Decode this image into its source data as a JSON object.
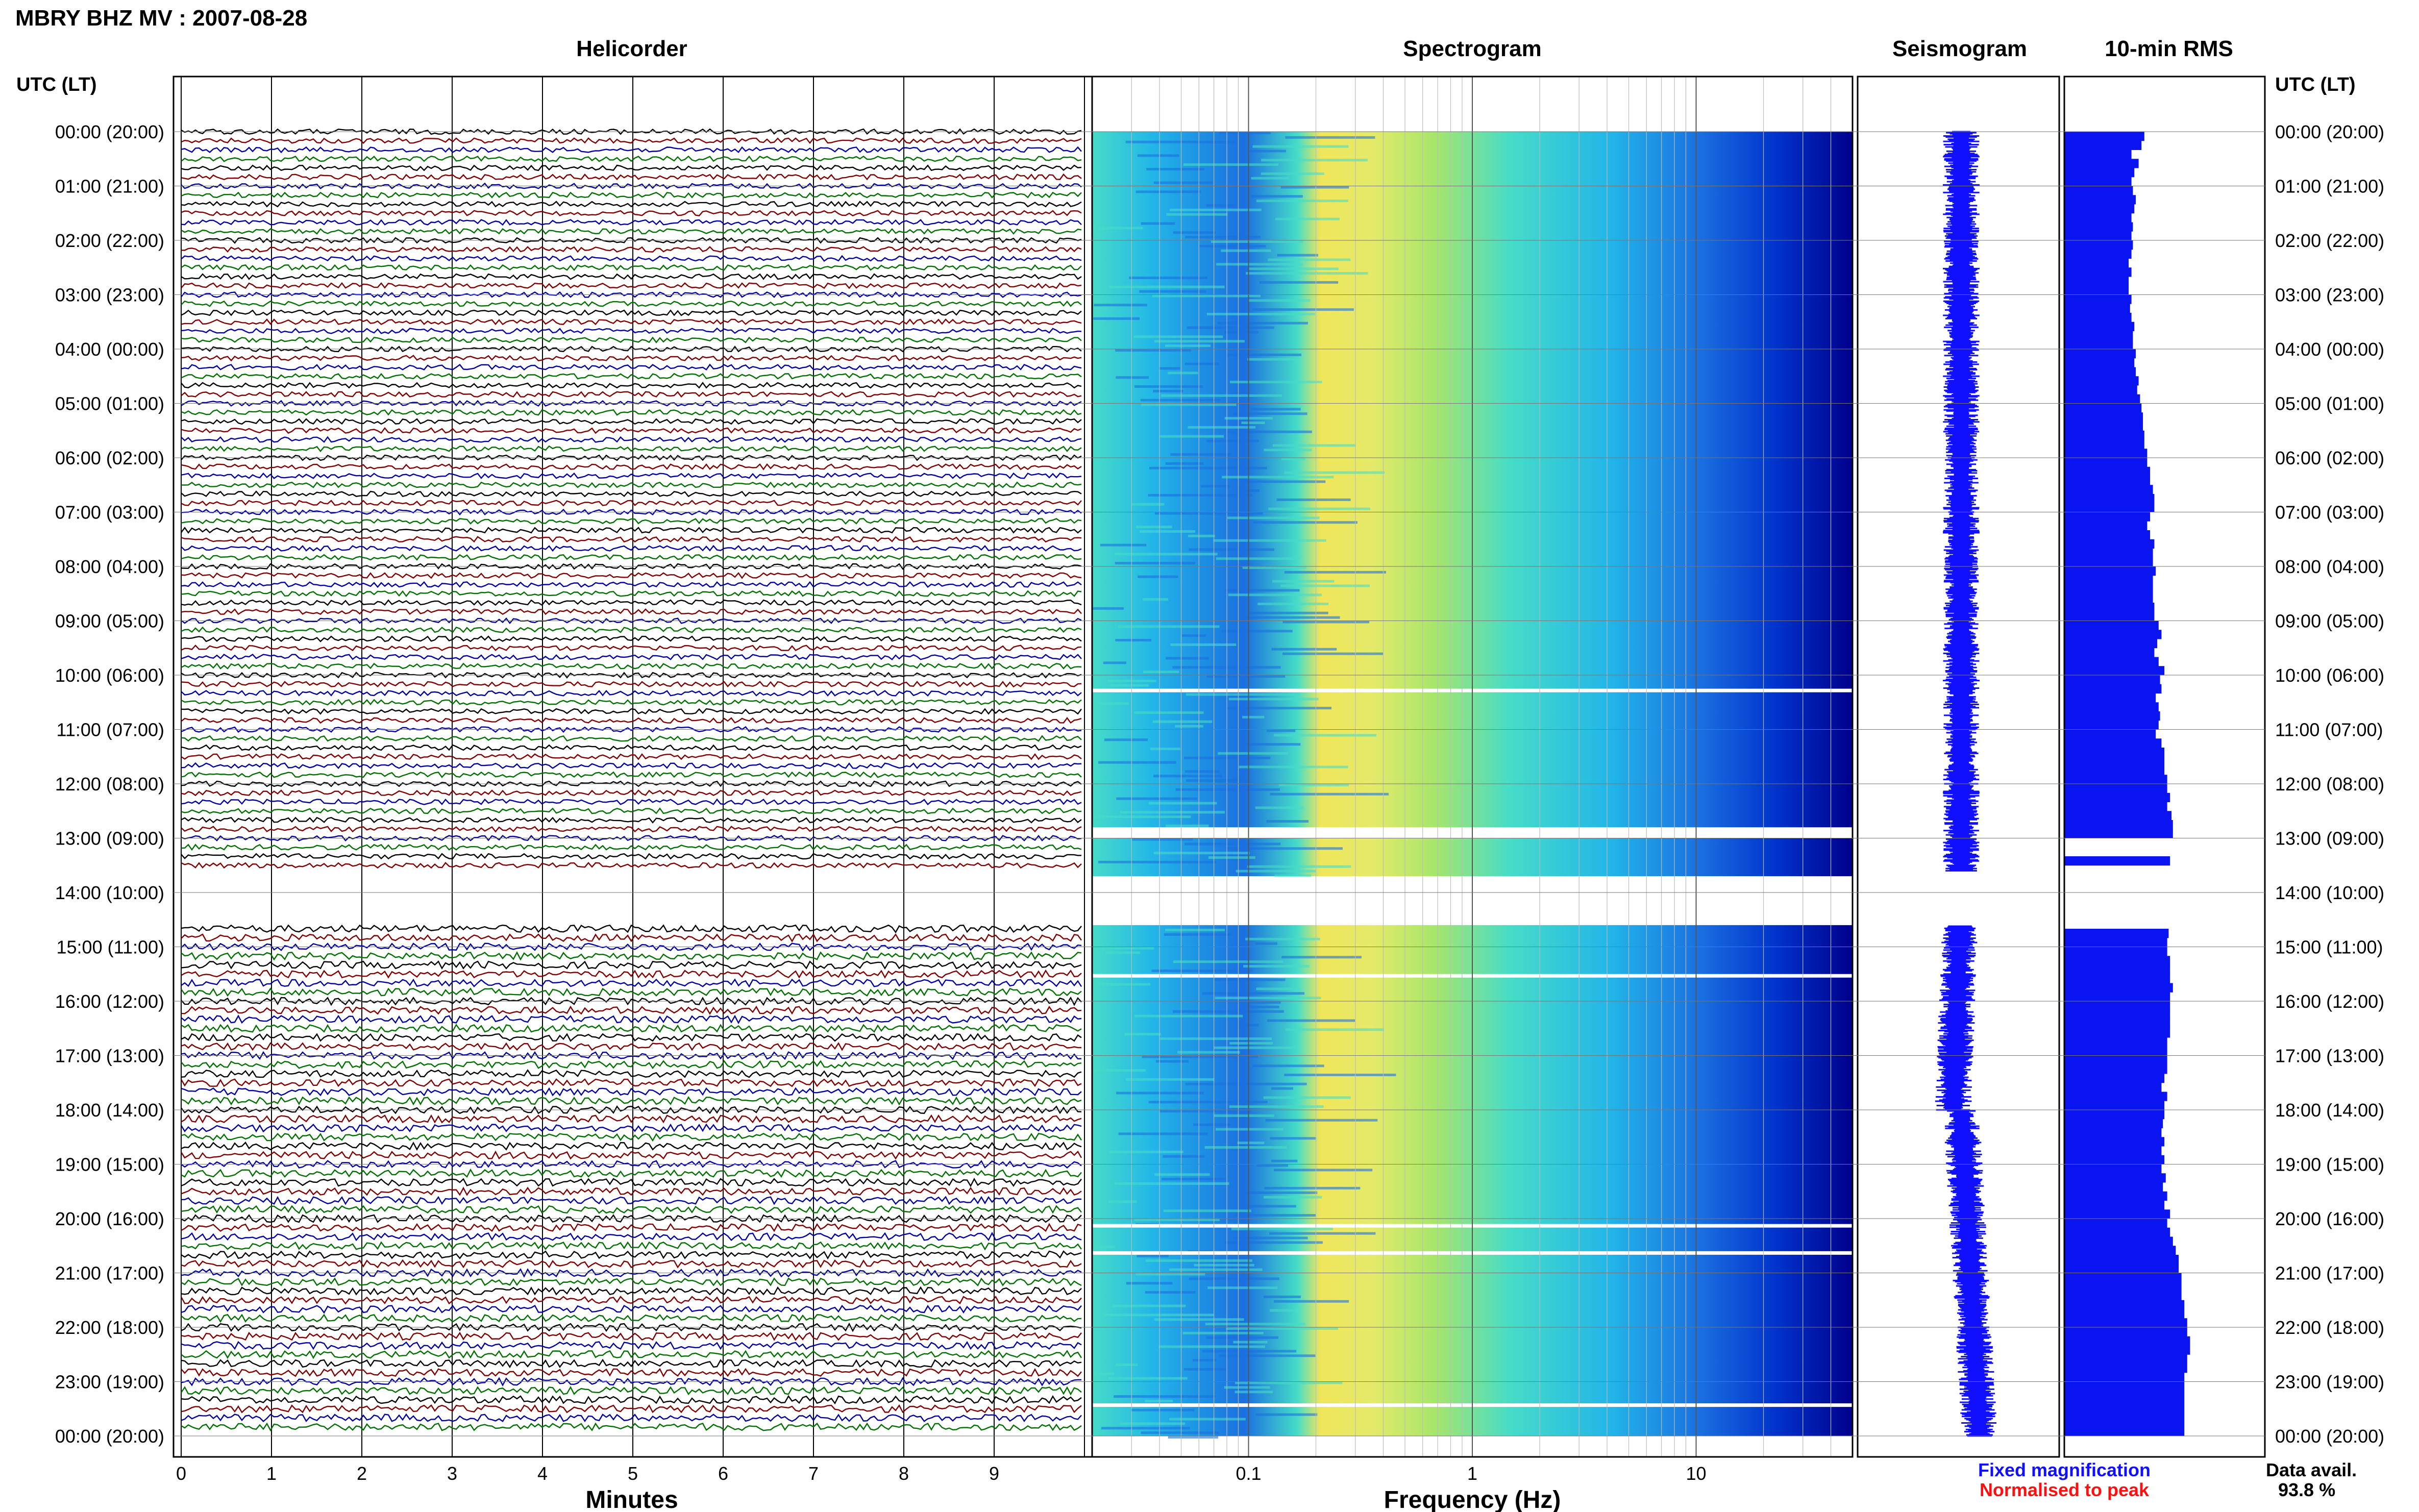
{
  "header": {
    "title": "MBRY BHZ MV : 2007-08-28"
  },
  "panels": {
    "helicorder": "Helicorder",
    "spectrogram": "Spectrogram",
    "seismogram": "Seismogram",
    "rms": "10-min RMS"
  },
  "axis_headers": {
    "left": "UTC (LT)",
    "right": "UTC (LT)"
  },
  "legend": {
    "fixed": "Fixed magnification",
    "normalised": "Normalised to peak",
    "fixed_color": "#1010ff",
    "normalised_color": "#ff1010"
  },
  "data_avail": {
    "label": "Data avail.",
    "value": "93.8 %"
  },
  "colors": {
    "trace_cycle": [
      "#000000",
      "#800000",
      "#0000a0",
      "#007000"
    ],
    "bar_color": "#0a14f0",
    "spectrogram_palette": [
      "#00008b",
      "#0033cc",
      "#1a6fe0",
      "#22b6e8",
      "#46dcc8",
      "#a8e66a",
      "#f0e65a"
    ]
  },
  "chart_data": [
    {
      "type": "heatmap",
      "title": "Helicorder",
      "xlabel": "Minutes",
      "xticks": [
        "0",
        "1",
        "2",
        "3",
        "4",
        "5",
        "6",
        "7",
        "8",
        "9"
      ],
      "xlim": [
        0,
        10
      ],
      "yticks": [
        "00:00 (20:00)",
        "01:00 (21:00)",
        "02:00 (22:00)",
        "03:00 (23:00)",
        "04:00 (00:00)",
        "05:00 (01:00)",
        "06:00 (02:00)",
        "07:00 (03:00)",
        "08:00 (04:00)",
        "09:00 (05:00)",
        "10:00 (06:00)",
        "11:00 (07:00)",
        "12:00 (08:00)",
        "13:00 (09:00)",
        "14:00 (10:00)",
        "15:00 (11:00)",
        "16:00 (12:00)",
        "17:00 (13:00)",
        "18:00 (14:00)",
        "19:00 (15:00)",
        "20:00 (16:00)",
        "21:00 (17:00)",
        "22:00 (18:00)",
        "23:00 (19:00)",
        "00:00 (20:00)"
      ],
      "rows_per_hour": 6,
      "data_gap_hours": [
        [
          13.6,
          14.6
        ]
      ]
    },
    {
      "type": "heatmap",
      "title": "Spectrogram",
      "xlabel": "Frequency (Hz)",
      "xscale": "log",
      "xlim": [
        0.02,
        50
      ],
      "xticks": [
        "0.1",
        "1",
        "10"
      ],
      "ridge_frequency_hz": 0.3,
      "data_gap_hours": [
        [
          12.8,
          13.0
        ],
        [
          13.7,
          14.6
        ]
      ]
    },
    {
      "type": "line",
      "title": "Seismogram",
      "data_gap_hours": [
        [
          13.6,
          14.6
        ]
      ]
    },
    {
      "type": "bar",
      "title": "10-min RMS",
      "orientation": "horizontal",
      "interval_minutes": 10,
      "start_hour_utc": 0,
      "values": [
        0.56,
        0.54,
        0.47,
        0.52,
        0.49,
        0.47,
        0.48,
        0.5,
        0.49,
        0.47,
        0.48,
        0.47,
        0.48,
        0.47,
        0.45,
        0.47,
        0.45,
        0.45,
        0.47,
        0.46,
        0.47,
        0.49,
        0.48,
        0.48,
        0.5,
        0.49,
        0.5,
        0.52,
        0.51,
        0.53,
        0.54,
        0.55,
        0.55,
        0.56,
        0.56,
        0.58,
        0.58,
        0.6,
        0.6,
        0.62,
        0.63,
        0.63,
        0.6,
        0.58,
        0.6,
        0.63,
        0.62,
        0.62,
        0.64,
        0.62,
        0.62,
        0.62,
        0.63,
        0.63,
        0.66,
        0.68,
        0.65,
        0.63,
        0.66,
        0.7,
        0.67,
        0.68,
        0.64,
        0.66,
        0.67,
        0.66,
        0.64,
        0.68,
        0.7,
        0.7,
        0.7,
        0.72,
        0.72,
        0.74,
        0.72,
        0.75,
        0.76,
        0.76,
        0.78,
        0.76,
        0.74,
        0.74,
        0.76,
        0.72,
        0.72,
        0.74,
        0.74,
        0.73,
        0.73,
        0.72,
        0.72,
        0.74,
        0.74,
        0.74,
        0.76,
        0.74,
        0.74,
        0.74,
        0.74,
        0.74,
        0.72,
        0.72,
        0.72,
        0.72,
        0.7,
        0.68,
        0.72,
        0.7,
        0.7,
        0.69,
        0.68,
        0.7,
        0.68,
        0.7,
        0.68,
        0.71,
        0.69,
        0.72,
        0.7,
        0.74,
        0.72,
        0.74,
        0.76,
        0.78,
        0.8,
        0.8,
        0.82,
        0.82,
        0.82,
        0.84,
        0.84,
        0.86,
        0.86,
        0.88,
        0.88,
        0.86,
        0.86,
        0.84,
        0.84,
        0.84,
        0.84,
        0.84,
        0.84,
        0.84
      ],
      "missing_bins": [
        78,
        79,
        81,
        82,
        83,
        84,
        85,
        86,
        87
      ]
    }
  ]
}
